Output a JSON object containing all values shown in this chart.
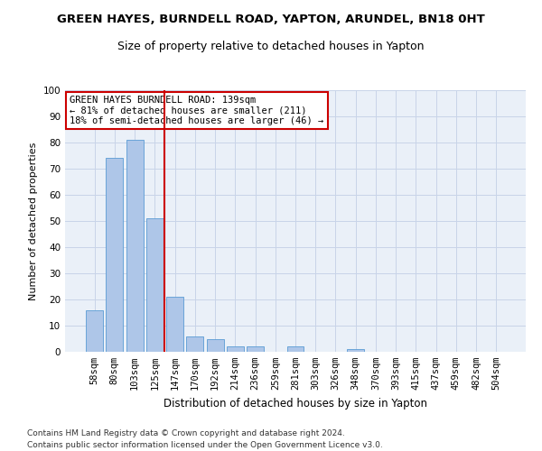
{
  "title": "GREEN HAYES, BURNDELL ROAD, YAPTON, ARUNDEL, BN18 0HT",
  "subtitle": "Size of property relative to detached houses in Yapton",
  "xlabel": "Distribution of detached houses by size in Yapton",
  "ylabel": "Number of detached properties",
  "categories": [
    "58sqm",
    "80sqm",
    "103sqm",
    "125sqm",
    "147sqm",
    "170sqm",
    "192sqm",
    "214sqm",
    "236sqm",
    "259sqm",
    "281sqm",
    "303sqm",
    "326sqm",
    "348sqm",
    "370sqm",
    "393sqm",
    "415sqm",
    "437sqm",
    "459sqm",
    "482sqm",
    "504sqm"
  ],
  "values": [
    16,
    74,
    81,
    51,
    21,
    6,
    5,
    2,
    2,
    0,
    2,
    0,
    0,
    1,
    0,
    0,
    0,
    0,
    0,
    0,
    0
  ],
  "bar_color": "#aec6e8",
  "bar_edge_color": "#5a9bd4",
  "vline_color": "#cc0000",
  "vline_x_index": 3.5,
  "annotation_box_text": "GREEN HAYES BURNDELL ROAD: 139sqm\n← 81% of detached houses are smaller (211)\n18% of semi-detached houses are larger (46) →",
  "annotation_box_color": "#cc0000",
  "ylim": [
    0,
    100
  ],
  "yticks": [
    0,
    10,
    20,
    30,
    40,
    50,
    60,
    70,
    80,
    90,
    100
  ],
  "grid_color": "#c8d4e8",
  "background_color": "#eaf0f8",
  "footer_line1": "Contains HM Land Registry data © Crown copyright and database right 2024.",
  "footer_line2": "Contains public sector information licensed under the Open Government Licence v3.0.",
  "title_fontsize": 9.5,
  "subtitle_fontsize": 9,
  "xlabel_fontsize": 8.5,
  "ylabel_fontsize": 8,
  "tick_fontsize": 7.5,
  "footer_fontsize": 6.5
}
